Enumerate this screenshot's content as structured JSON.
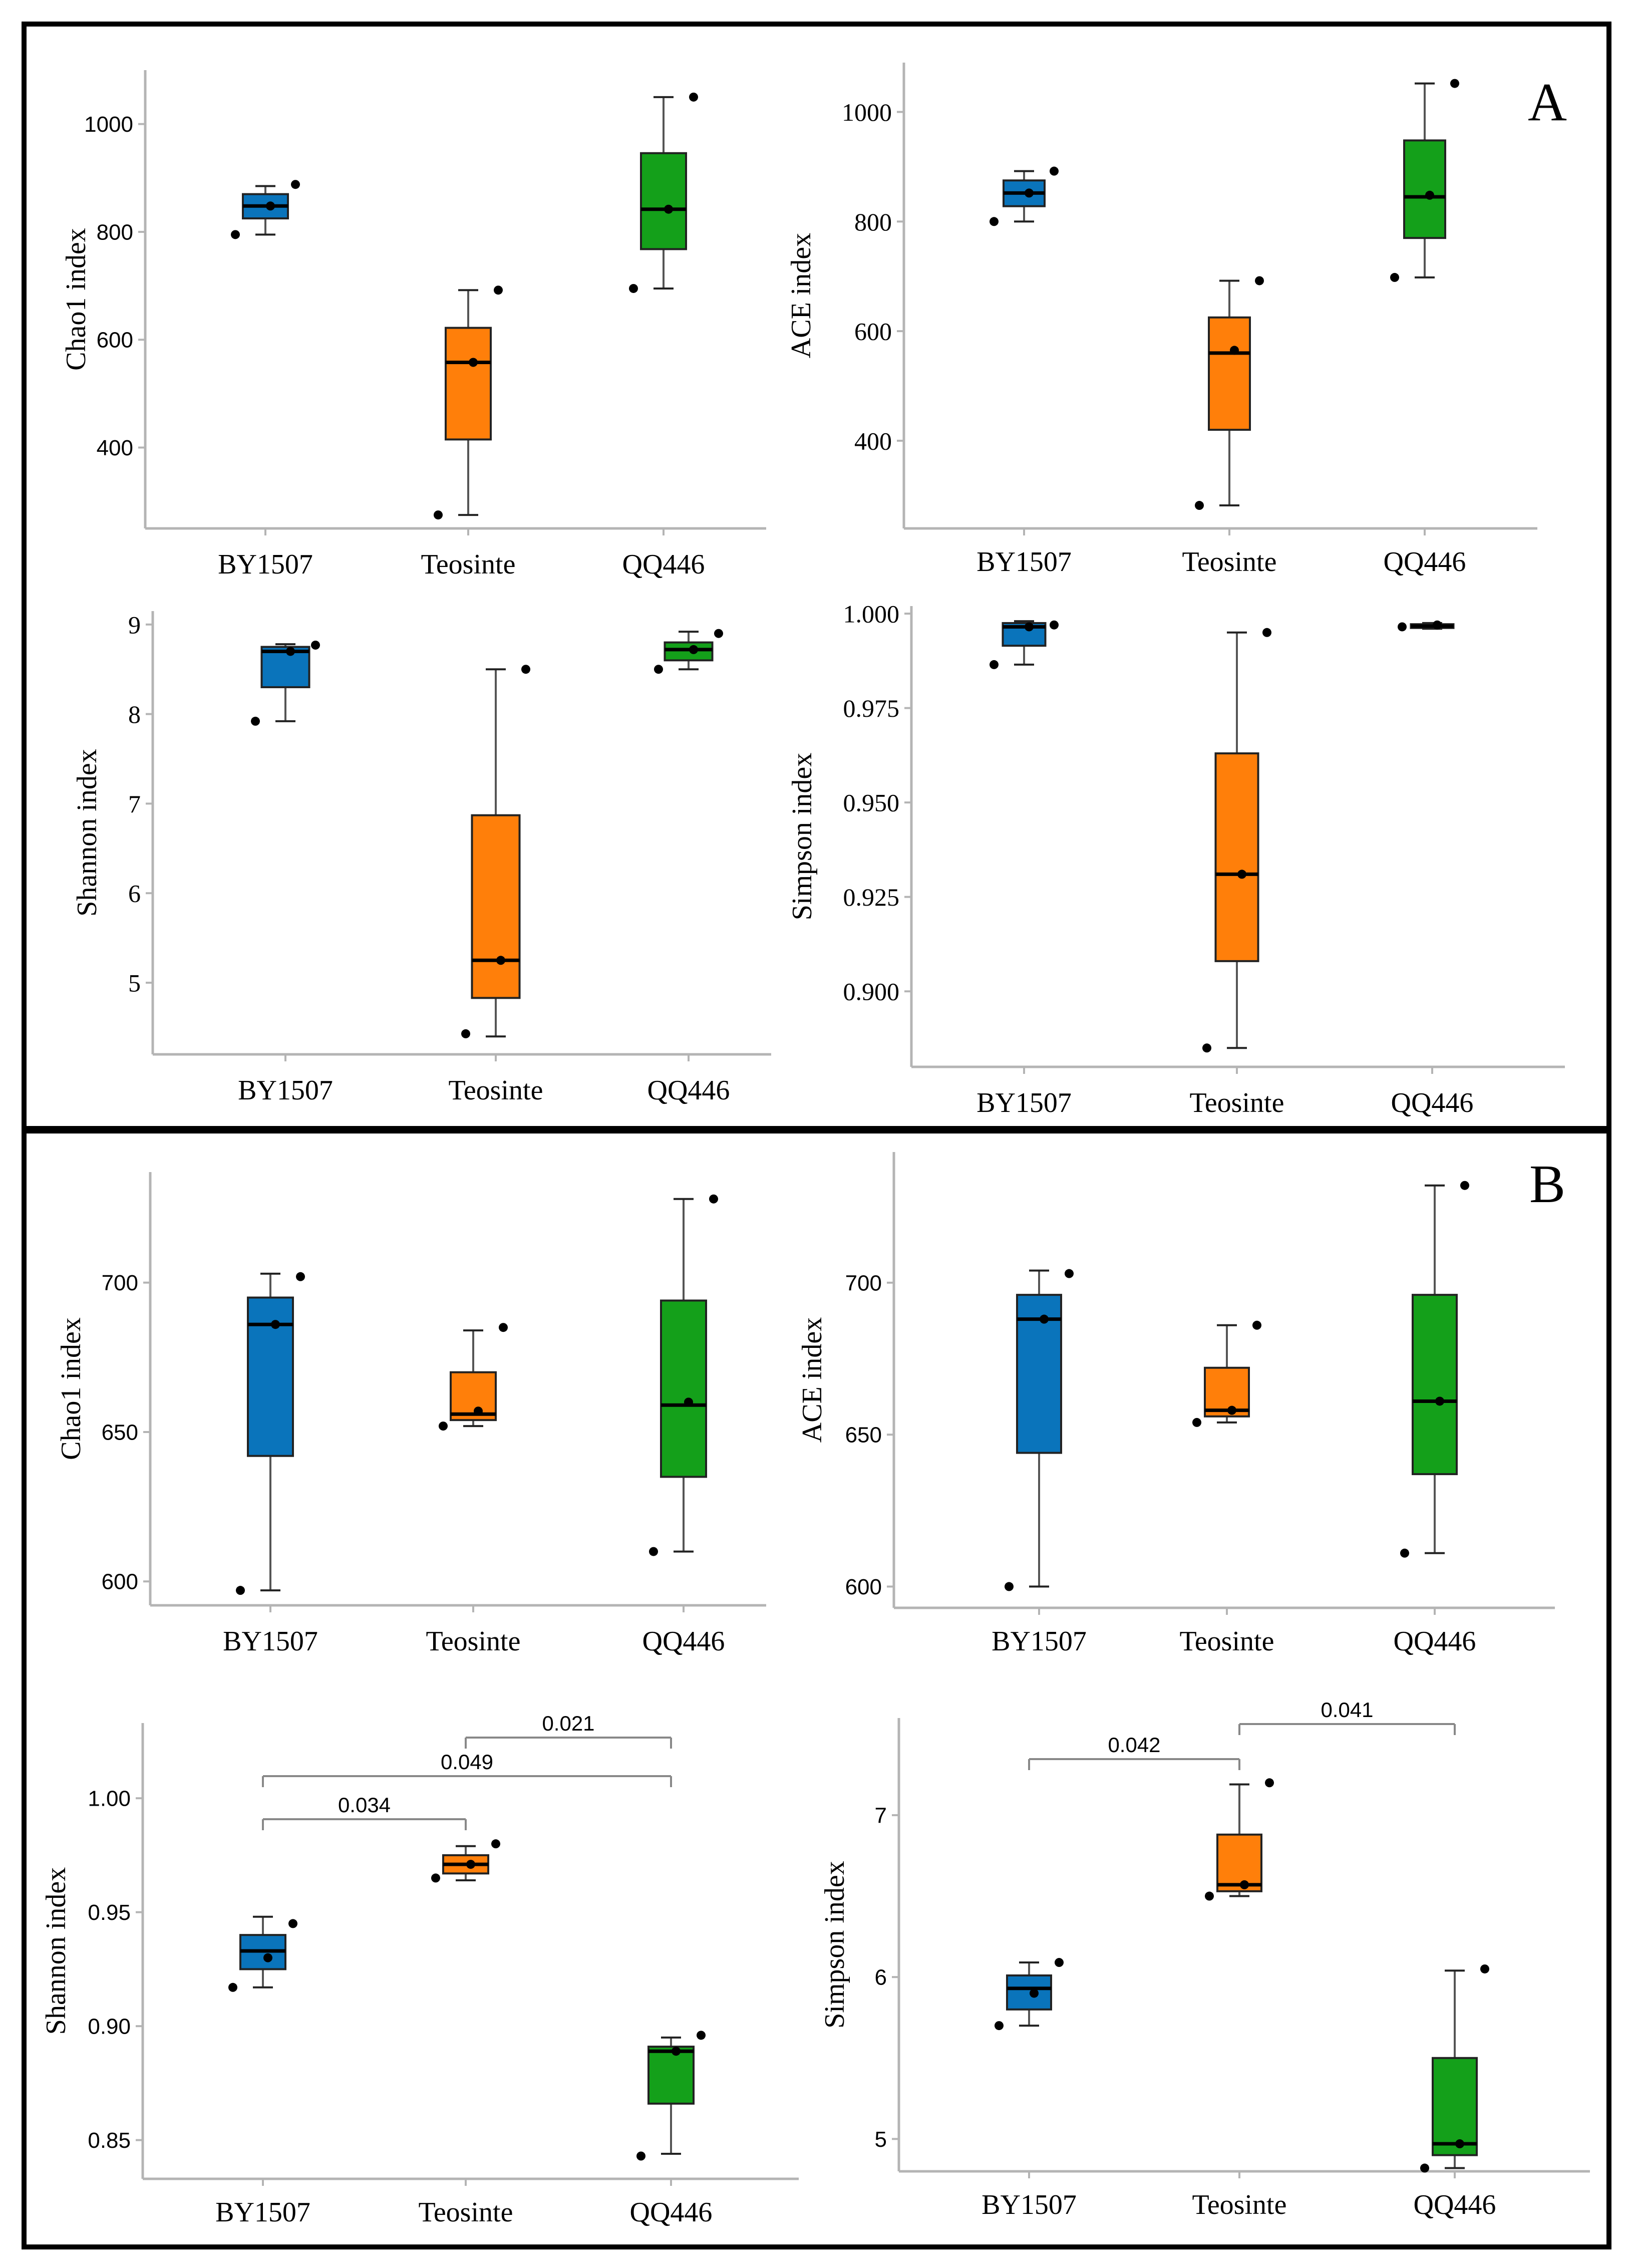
{
  "panels": [
    {
      "label": "A"
    },
    {
      "label": "B"
    }
  ],
  "colors": {
    "BY1507": "#0a74bb",
    "Teosinte": "#ff7f0a",
    "QQ446": "#14a01a",
    "axis": "#b4b4b4",
    "frame": "#000000"
  },
  "chart_data": [
    {
      "type": "box",
      "panel": "A",
      "ylabel": "Chao1 index",
      "categories": [
        "BY1507",
        "Teosinte",
        "QQ446"
      ],
      "ylim": [
        250,
        1100
      ],
      "yticks": [
        400,
        600,
        800,
        1000
      ],
      "boxes": [
        {
          "q1": 825,
          "median": 848,
          "q3": 870,
          "whisker_low": 795,
          "whisker_high": 885,
          "points": [
            795,
            848,
            888
          ]
        },
        {
          "q1": 415,
          "median": 558,
          "q3": 622,
          "whisker_low": 275,
          "whisker_high": 692,
          "points": [
            275,
            558,
            692
          ]
        },
        {
          "q1": 768,
          "median": 842,
          "q3": 946,
          "whisker_low": 695,
          "whisker_high": 1050,
          "points": [
            695,
            842,
            1050
          ]
        }
      ]
    },
    {
      "type": "box",
      "panel": "A",
      "ylabel": "ACE index",
      "categories": [
        "BY1507",
        "Teosinte",
        "QQ446"
      ],
      "ylim": [
        240,
        1090
      ],
      "yticks": [
        400,
        600,
        800,
        1000
      ],
      "boxes": [
        {
          "q1": 828,
          "median": 852,
          "q3": 875,
          "whisker_low": 800,
          "whisker_high": 892,
          "points": [
            800,
            852,
            892
          ]
        },
        {
          "q1": 420,
          "median": 560,
          "q3": 625,
          "whisker_low": 282,
          "whisker_high": 692,
          "points": [
            282,
            565,
            692
          ]
        },
        {
          "q1": 770,
          "median": 845,
          "q3": 948,
          "whisker_low": 698,
          "whisker_high": 1052,
          "points": [
            698,
            848,
            1052
          ]
        }
      ]
    },
    {
      "type": "box",
      "panel": "A",
      "ylabel": "Shannon index",
      "categories": [
        "BY1507",
        "Teosinte",
        "QQ446"
      ],
      "ylim": [
        4.2,
        9.15
      ],
      "yticks": [
        5,
        6,
        7,
        8,
        9
      ],
      "boxes": [
        {
          "q1": 8.3,
          "median": 8.7,
          "q3": 8.75,
          "whisker_low": 7.92,
          "whisker_high": 8.78,
          "points": [
            7.92,
            8.7,
            8.77
          ]
        },
        {
          "q1": 4.83,
          "median": 5.25,
          "q3": 6.87,
          "whisker_low": 4.4,
          "whisker_high": 8.5,
          "points": [
            4.43,
            5.25,
            8.5
          ]
        },
        {
          "q1": 8.6,
          "median": 8.72,
          "q3": 8.8,
          "whisker_low": 8.5,
          "whisker_high": 8.92,
          "points": [
            8.5,
            8.72,
            8.9
          ]
        }
      ]
    },
    {
      "type": "box",
      "panel": "A",
      "ylabel": "Simpson index",
      "categories": [
        "BY1507",
        "Teosinte",
        "QQ446"
      ],
      "ylim": [
        0.88,
        1.002
      ],
      "yticks": [
        0.9,
        0.925,
        0.95,
        0.975,
        1.0
      ],
      "ytick_labels": [
        "0.900",
        "0.925",
        "0.950",
        "0.975",
        "1.000"
      ],
      "boxes": [
        {
          "q1": 0.9915,
          "median": 0.9965,
          "q3": 0.9975,
          "whisker_low": 0.9865,
          "whisker_high": 0.998,
          "points": [
            0.9865,
            0.9965,
            0.997
          ]
        },
        {
          "q1": 0.908,
          "median": 0.931,
          "q3": 0.963,
          "whisker_low": 0.885,
          "whisker_high": 0.995,
          "points": [
            0.885,
            0.931,
            0.995
          ]
        },
        {
          "q1": 0.9962,
          "median": 0.9967,
          "q3": 0.9972,
          "whisker_low": 0.996,
          "whisker_high": 0.9975,
          "points": [
            0.9965,
            0.997
          ]
        }
      ]
    },
    {
      "type": "box",
      "panel": "B",
      "ylabel": "Chao1 index",
      "categories": [
        "BY1507",
        "Teosinte",
        "QQ446"
      ],
      "ylim": [
        592,
        737
      ],
      "yticks": [
        600,
        650,
        700
      ],
      "boxes": [
        {
          "q1": 642,
          "median": 686,
          "q3": 695,
          "whisker_low": 597,
          "whisker_high": 703,
          "points": [
            597,
            686,
            702
          ]
        },
        {
          "q1": 654,
          "median": 656,
          "q3": 670,
          "whisker_low": 652,
          "whisker_high": 684,
          "points": [
            652,
            657,
            685
          ]
        },
        {
          "q1": 635,
          "median": 659,
          "q3": 694,
          "whisker_low": 610,
          "whisker_high": 728,
          "points": [
            610,
            660,
            728
          ]
        }
      ]
    },
    {
      "type": "box",
      "panel": "B",
      "ylabel": "ACE index",
      "categories": [
        "BY1507",
        "Teosinte",
        "QQ446"
      ],
      "ylim": [
        593,
        743
      ],
      "yticks": [
        600,
        650,
        700
      ],
      "boxes": [
        {
          "q1": 644,
          "median": 688,
          "q3": 696,
          "whisker_low": 600,
          "whisker_high": 704,
          "points": [
            600,
            688,
            703
          ]
        },
        {
          "q1": 656,
          "median": 658,
          "q3": 672,
          "whisker_low": 654,
          "whisker_high": 686,
          "points": [
            654,
            658,
            686
          ]
        },
        {
          "q1": 637,
          "median": 661,
          "q3": 696,
          "whisker_low": 611,
          "whisker_high": 732,
          "points": [
            611,
            661,
            732
          ]
        }
      ]
    },
    {
      "type": "box",
      "panel": "B",
      "ylabel": "Shannon index",
      "categories": [
        "BY1507",
        "Teosinte",
        "QQ446"
      ],
      "ylim": [
        0.833,
        1.033
      ],
      "yticks": [
        0.85,
        0.9,
        0.95,
        1.0
      ],
      "ytick_labels": [
        "0.85",
        "0.90",
        "0.95",
        "1.00"
      ],
      "boxes": [
        {
          "q1": 0.925,
          "median": 0.933,
          "q3": 0.94,
          "whisker_low": 0.917,
          "whisker_high": 0.948,
          "points": [
            0.917,
            0.93,
            0.945
          ]
        },
        {
          "q1": 0.967,
          "median": 0.971,
          "q3": 0.975,
          "whisker_low": 0.964,
          "whisker_high": 0.979,
          "points": [
            0.965,
            0.971,
            0.98
          ]
        },
        {
          "q1": 0.866,
          "median": 0.889,
          "q3": 0.891,
          "whisker_low": 0.844,
          "whisker_high": 0.895,
          "points": [
            0.843,
            0.889,
            0.896
          ]
        }
      ],
      "annotations": [
        {
          "from": 0,
          "to": 1,
          "label": "0.034"
        },
        {
          "from": 0,
          "to": 2,
          "label": "0.049"
        },
        {
          "from": 1,
          "to": 2,
          "label": "0.021"
        }
      ]
    },
    {
      "type": "box",
      "panel": "B",
      "ylabel": "Simpson index",
      "categories": [
        "BY1507",
        "Teosinte",
        "QQ446"
      ],
      "ylim": [
        4.8,
        7.6
      ],
      "yticks": [
        5,
        6,
        7
      ],
      "boxes": [
        {
          "q1": 5.8,
          "median": 5.93,
          "q3": 6.01,
          "whisker_low": 5.7,
          "whisker_high": 6.09,
          "points": [
            5.7,
            5.9,
            6.09
          ]
        },
        {
          "q1": 6.53,
          "median": 6.57,
          "q3": 6.88,
          "whisker_low": 6.5,
          "whisker_high": 7.19,
          "points": [
            6.5,
            6.57,
            7.2
          ]
        },
        {
          "q1": 4.9,
          "median": 4.97,
          "q3": 5.5,
          "whisker_low": 4.82,
          "whisker_high": 6.04,
          "points": [
            4.82,
            4.97,
            6.05
          ]
        }
      ],
      "annotations": [
        {
          "from": 0,
          "to": 1,
          "label": "0.042"
        },
        {
          "from": 1,
          "to": 2,
          "label": "0.041"
        }
      ]
    }
  ]
}
